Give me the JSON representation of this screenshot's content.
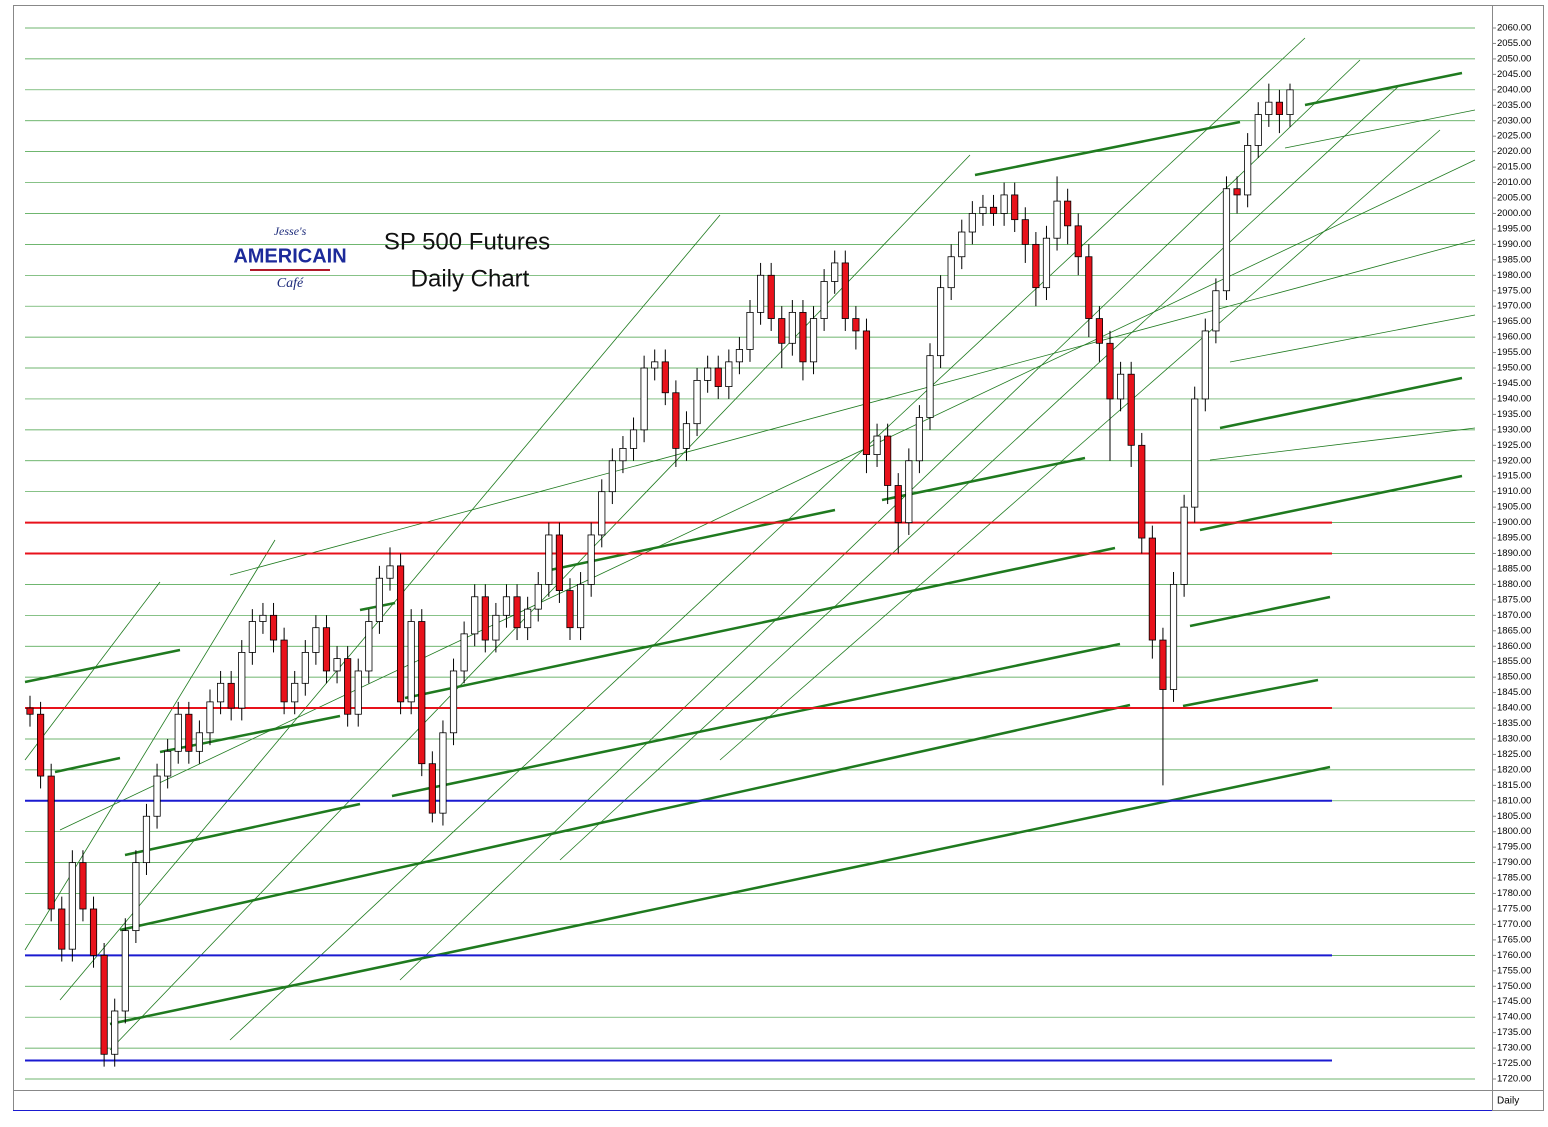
{
  "chart_data": {
    "type": "candlestick",
    "title": "SP 500 Futures",
    "subtitle": "Daily Chart",
    "period_label": "Daily",
    "logo": [
      "Jesse's",
      "AMERICAIN",
      "Café"
    ],
    "up_color": "#ffffff",
    "down_color": "#e8121b",
    "grid": true,
    "grid_color": "#1e8c1e",
    "open": [
      1840,
      1838,
      1818,
      1775,
      1762,
      1790,
      1775,
      1760,
      1728,
      1742,
      1768,
      1790,
      1805,
      1818,
      1826,
      1838,
      1826,
      1832,
      1842,
      1848,
      1840,
      1858,
      1868,
      1870,
      1862,
      1842,
      1848,
      1858,
      1866,
      1852,
      1856,
      1838,
      1852,
      1868,
      1882,
      1886,
      1842,
      1868,
      1822,
      1806,
      1832,
      1852,
      1864,
      1876,
      1862,
      1870,
      1876,
      1866,
      1872,
      1880,
      1896,
      1878,
      1866,
      1880,
      1896,
      1910,
      1920,
      1924,
      1930,
      1950,
      1952,
      1942,
      1924,
      1932,
      1946,
      1950,
      1944,
      1952,
      1956,
      1968,
      1980,
      1966,
      1958,
      1968,
      1952,
      1966,
      1978,
      1984,
      1966,
      1962,
      1922,
      1928,
      1912,
      1900,
      1920,
      1934,
      1954,
      1976,
      1986,
      1994,
      2000,
      2002,
      2000,
      2006,
      1998,
      1990,
      1976,
      1992,
      2004,
      1996,
      1986,
      1966,
      1958,
      1940,
      1948,
      1925,
      1895,
      1862,
      1846,
      1880,
      1905,
      1940,
      1962,
      1975,
      2008,
      2006,
      2022,
      2032,
      2036,
      2032
    ],
    "high": [
      1844,
      1842,
      1822,
      1779,
      1794,
      1794,
      1779,
      1764,
      1746,
      1772,
      1794,
      1809,
      1822,
      1830,
      1842,
      1842,
      1836,
      1846,
      1852,
      1852,
      1862,
      1872,
      1874,
      1874,
      1866,
      1852,
      1862,
      1870,
      1870,
      1860,
      1860,
      1856,
      1872,
      1886,
      1892,
      1890,
      1872,
      1872,
      1826,
      1836,
      1856,
      1868,
      1880,
      1880,
      1874,
      1880,
      1880,
      1876,
      1884,
      1900,
      1900,
      1882,
      1884,
      1900,
      1914,
      1924,
      1928,
      1934,
      1954,
      1956,
      1956,
      1946,
      1936,
      1950,
      1954,
      1954,
      1956,
      1960,
      1972,
      1984,
      1984,
      1970,
      1972,
      1972,
      1970,
      1982,
      1988,
      1988,
      1970,
      1966,
      1932,
      1932,
      1916,
      1924,
      1938,
      1958,
      1980,
      1990,
      1998,
      2004,
      2006,
      2006,
      2010,
      2010,
      2002,
      1994,
      1996,
      2012,
      2008,
      2000,
      1990,
      1970,
      1962,
      1952,
      1952,
      1929,
      1899,
      1866,
      1884,
      1909,
      1944,
      1966,
      1979,
      2012,
      2012,
      2026,
      2036,
      2042,
      2040,
      2042
    ],
    "low": [
      1834,
      1814,
      1771,
      1758,
      1758,
      1771,
      1756,
      1724,
      1724,
      1738,
      1764,
      1786,
      1801,
      1814,
      1822,
      1822,
      1822,
      1828,
      1838,
      1836,
      1836,
      1854,
      1864,
      1858,
      1838,
      1838,
      1844,
      1854,
      1848,
      1848,
      1834,
      1834,
      1848,
      1864,
      1878,
      1838,
      1838,
      1818,
      1803,
      1802,
      1828,
      1848,
      1860,
      1858,
      1858,
      1866,
      1862,
      1862,
      1868,
      1876,
      1874,
      1862,
      1862,
      1876,
      1892,
      1906,
      1916,
      1920,
      1926,
      1946,
      1938,
      1918,
      1920,
      1928,
      1942,
      1940,
      1940,
      1948,
      1952,
      1964,
      1962,
      1950,
      1954,
      1946,
      1948,
      1962,
      1974,
      1962,
      1956,
      1916,
      1918,
      1906,
      1890,
      1896,
      1916,
      1930,
      1950,
      1972,
      1982,
      1990,
      1996,
      1996,
      1996,
      1994,
      1984,
      1970,
      1972,
      1988,
      1990,
      1980,
      1960,
      1952,
      1920,
      1936,
      1918,
      1890,
      1856,
      1815,
      1842,
      1876,
      1900,
      1936,
      1958,
      1972,
      2000,
      2002,
      2018,
      2028,
      2026,
      2028
    ],
    "close": [
      1838,
      1818,
      1775,
      1762,
      1790,
      1775,
      1760,
      1728,
      1742,
      1768,
      1790,
      1805,
      1818,
      1826,
      1838,
      1826,
      1832,
      1842,
      1848,
      1840,
      1858,
      1868,
      1870,
      1862,
      1842,
      1848,
      1858,
      1866,
      1852,
      1856,
      1838,
      1852,
      1868,
      1882,
      1886,
      1842,
      1868,
      1822,
      1806,
      1832,
      1852,
      1864,
      1876,
      1862,
      1870,
      1876,
      1866,
      1872,
      1880,
      1896,
      1878,
      1866,
      1880,
      1896,
      1910,
      1920,
      1924,
      1930,
      1950,
      1952,
      1942,
      1924,
      1932,
      1946,
      1950,
      1944,
      1952,
      1956,
      1968,
      1980,
      1966,
      1958,
      1968,
      1952,
      1966,
      1978,
      1984,
      1966,
      1962,
      1922,
      1928,
      1912,
      1900,
      1920,
      1934,
      1954,
      1976,
      1986,
      1994,
      2000,
      2002,
      2000,
      2006,
      1998,
      1990,
      1976,
      1992,
      2004,
      1996,
      1986,
      1966,
      1958,
      1940,
      1948,
      1925,
      1895,
      1862,
      1846,
      1880,
      1905,
      1940,
      1962,
      1975,
      2008,
      2006,
      2022,
      2032,
      2036,
      2032,
      2040
    ],
    "levels": [
      {
        "value": 1900,
        "color": "#e8121b"
      },
      {
        "value": 1890,
        "color": "#e8121b"
      },
      {
        "value": 1840,
        "color": "#e8121b"
      },
      {
        "value": 1810,
        "color": "#1a1ad0"
      },
      {
        "value": 1760,
        "color": "#1a1ad0"
      },
      {
        "value": 1726,
        "color": "#1a1ad0"
      }
    ],
    "ylim": [
      1720,
      2060
    ],
    "yticks": [
      {
        "value": 1720,
        "label": "1720.00"
      },
      {
        "value": 1725,
        "label": "1725.00"
      },
      {
        "value": 1730,
        "label": "1730.00"
      },
      {
        "value": 1735,
        "label": "1735.00"
      },
      {
        "value": 1740,
        "label": "1740.00"
      },
      {
        "value": 1745,
        "label": "1745.00"
      },
      {
        "value": 1750,
        "label": "1750.00"
      },
      {
        "value": 1755,
        "label": "1755.00"
      },
      {
        "value": 1760,
        "label": "1760.00"
      },
      {
        "value": 1765,
        "label": "1765.00"
      },
      {
        "value": 1770,
        "label": "1770.00"
      },
      {
        "value": 1775,
        "label": "1775.00"
      },
      {
        "value": 1780,
        "label": "1780.00"
      },
      {
        "value": 1785,
        "label": "1785.00"
      },
      {
        "value": 1790,
        "label": "1790.00"
      },
      {
        "value": 1795,
        "label": "1795.00"
      },
      {
        "value": 1800,
        "label": "1800.00"
      },
      {
        "value": 1805,
        "label": "1805.00"
      },
      {
        "value": 1810,
        "label": "1810.00"
      },
      {
        "value": 1815,
        "label": "1815.00"
      },
      {
        "value": 1820,
        "label": "1820.00"
      },
      {
        "value": 1825,
        "label": "1825.00"
      },
      {
        "value": 1830,
        "label": "1830.00"
      },
      {
        "value": 1835,
        "label": "1835.00"
      },
      {
        "value": 1840,
        "label": "1840.00"
      },
      {
        "value": 1845,
        "label": "1845.00"
      },
      {
        "value": 1850,
        "label": "1850.00"
      },
      {
        "value": 1855,
        "label": "1855.00"
      },
      {
        "value": 1860,
        "label": "1860.00"
      },
      {
        "value": 1865,
        "label": "1865.00"
      },
      {
        "value": 1870,
        "label": "1870.00"
      },
      {
        "value": 1875,
        "label": "1875.00"
      },
      {
        "value": 1880,
        "label": "1880.00"
      },
      {
        "value": 1885,
        "label": "1885.00"
      },
      {
        "value": 1890,
        "label": "1890.00"
      },
      {
        "value": 1895,
        "label": "1895.00"
      },
      {
        "value": 1900,
        "label": "1900.00"
      },
      {
        "value": 1905,
        "label": "1905.00"
      },
      {
        "value": 1910,
        "label": "1910.00"
      },
      {
        "value": 1915,
        "label": "1915.00"
      },
      {
        "value": 1920,
        "label": "1920.00"
      },
      {
        "value": 1925,
        "label": "1925.00"
      },
      {
        "value": 1930,
        "label": "1930.00"
      },
      {
        "value": 1935,
        "label": "1935.00"
      },
      {
        "value": 1940,
        "label": "1940.00"
      },
      {
        "value": 1945,
        "label": "1945.00"
      },
      {
        "value": 1950,
        "label": "1950.00"
      },
      {
        "value": 1955,
        "label": "1955.00"
      },
      {
        "value": 1960,
        "label": "1960.00"
      },
      {
        "value": 1965,
        "label": "1965.00"
      },
      {
        "value": 1970,
        "label": "1970.00"
      },
      {
        "value": 1975,
        "label": "1975.00"
      },
      {
        "value": 1980,
        "label": "1980.00"
      },
      {
        "value": 1985,
        "label": "1985.00"
      },
      {
        "value": 1990,
        "label": "1990.00"
      },
      {
        "value": 1995,
        "label": "1995.00"
      },
      {
        "value": 2000,
        "label": "2000.00"
      },
      {
        "value": 2005,
        "label": "2005.00"
      },
      {
        "value": 2010,
        "label": "2010.00"
      },
      {
        "value": 2015,
        "label": "2015.00"
      },
      {
        "value": 2020,
        "label": "2020.00"
      },
      {
        "value": 2025,
        "label": "2025.00"
      },
      {
        "value": 2030,
        "label": "2030.00"
      },
      {
        "value": 2035,
        "label": "2035.00"
      },
      {
        "value": 2040,
        "label": "2040.00"
      },
      {
        "value": 2045,
        "label": "2045.00"
      },
      {
        "value": 2050,
        "label": "2050.00"
      },
      {
        "value": 2055,
        "label": "2055.00"
      },
      {
        "value": 2060,
        "label": "2060.00"
      }
    ]
  }
}
